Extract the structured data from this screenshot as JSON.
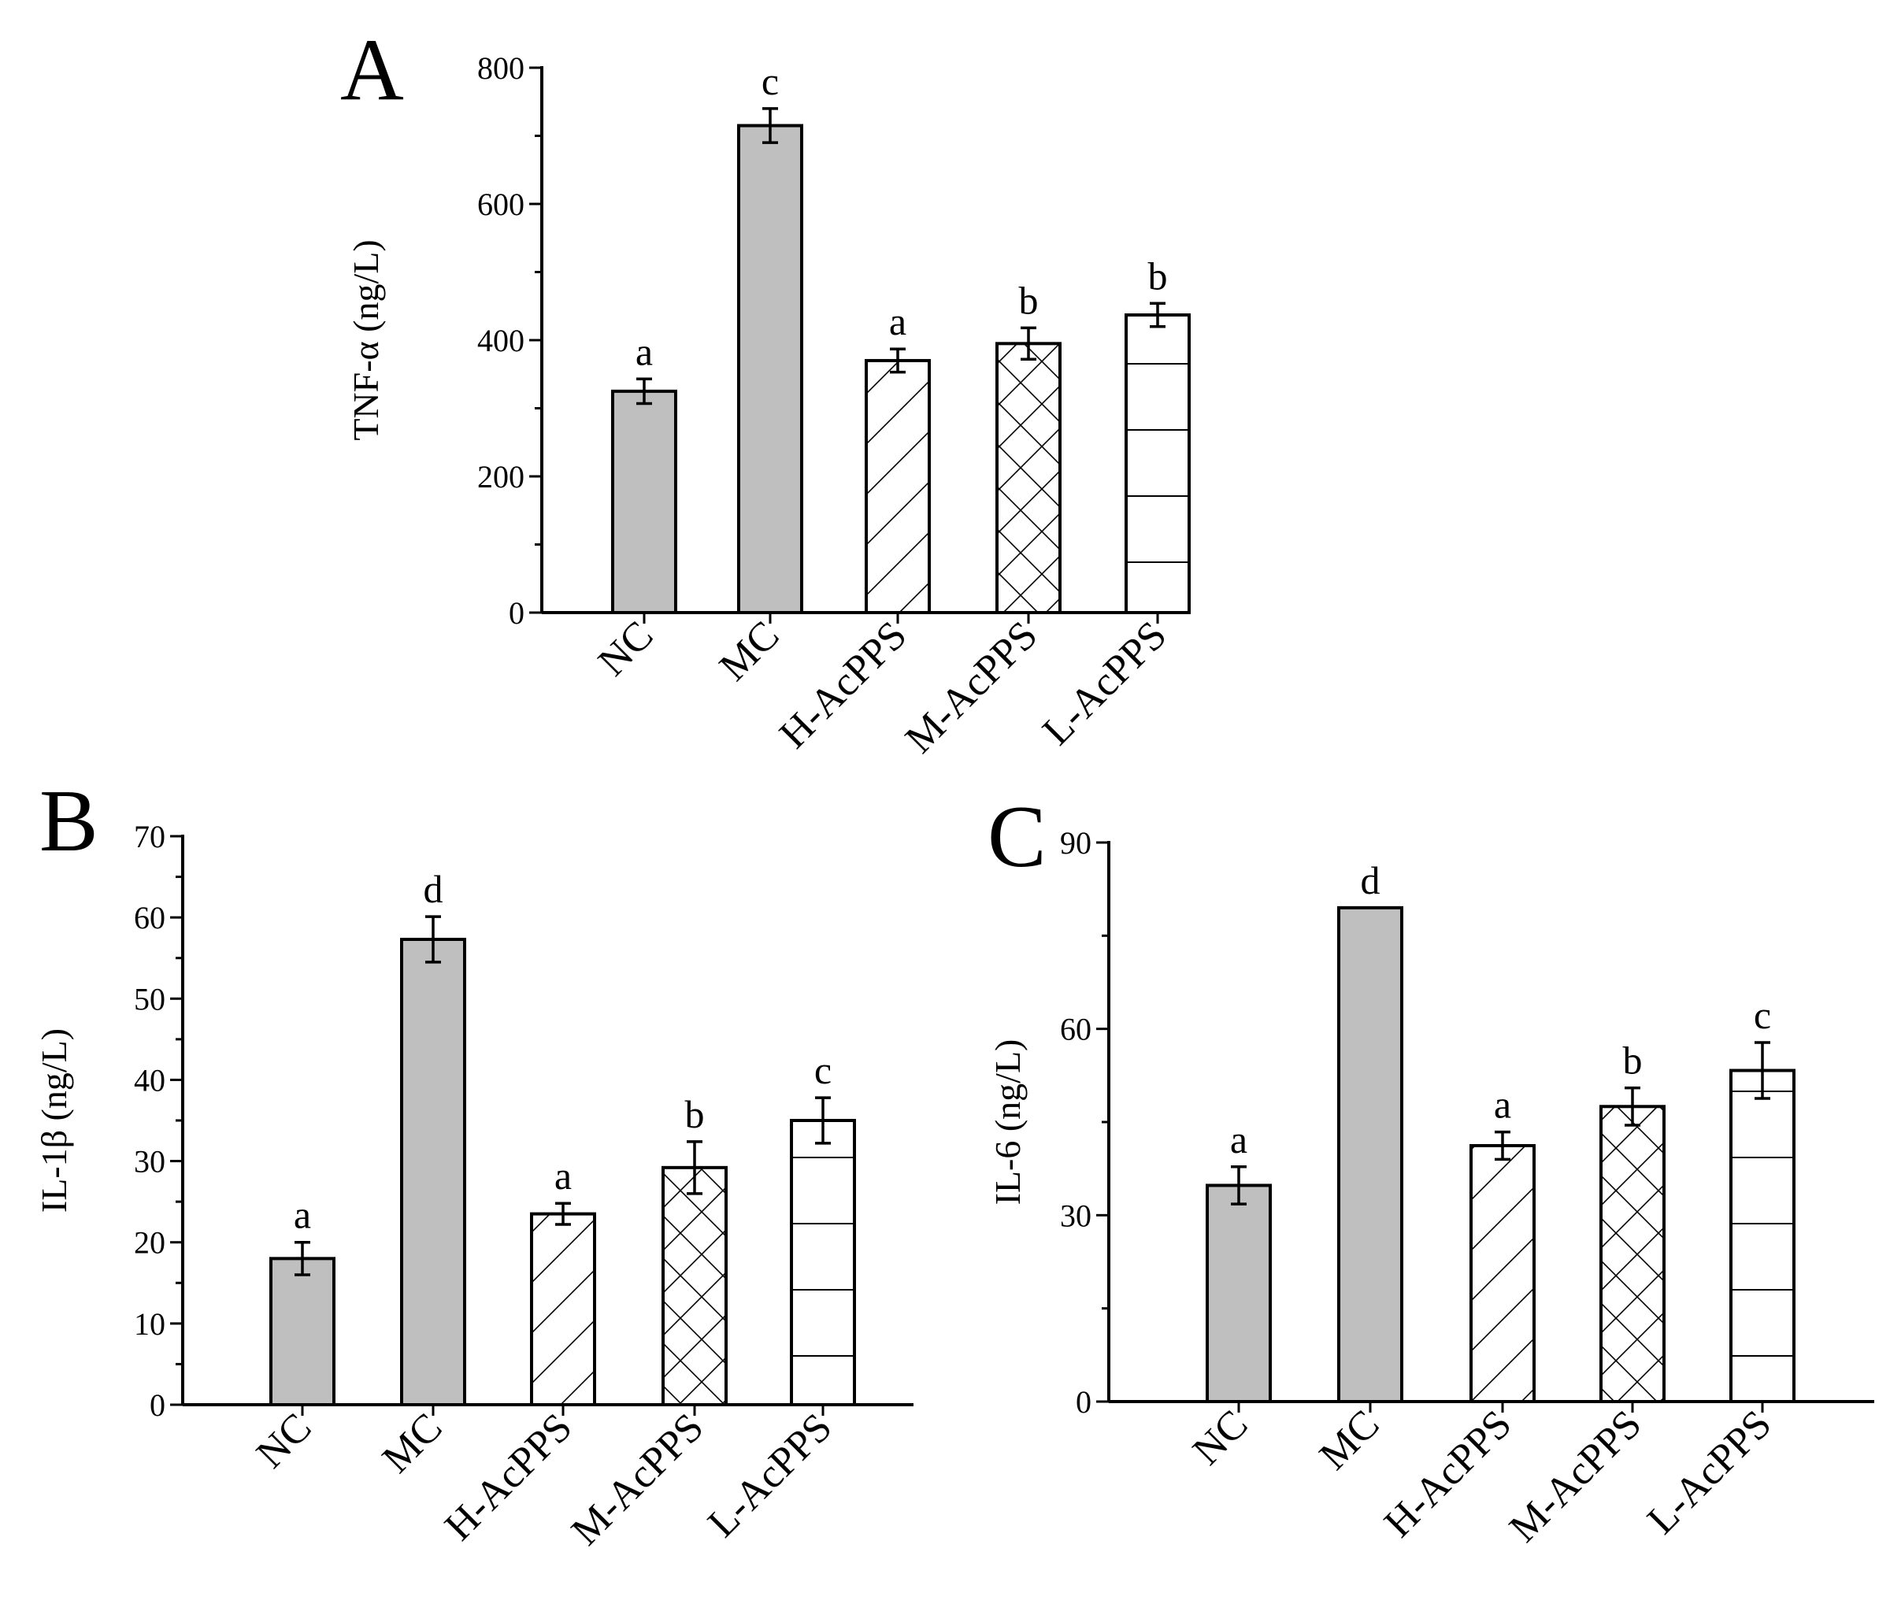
{
  "chart_data": [
    {
      "panel": "A",
      "type": "bar",
      "ylabel": "TNF-α (ng/L)",
      "ylim": [
        0,
        800
      ],
      "yticks": [
        0,
        200,
        400,
        600,
        800
      ],
      "categories": [
        "NC",
        "MC",
        "H-AcPPS",
        "M-AcPPS",
        "L-AcPPS"
      ],
      "values": [
        325,
        715,
        370,
        395,
        437
      ],
      "errors": [
        18,
        25,
        17,
        23,
        17
      ],
      "significance": [
        "a",
        "c",
        "a",
        "b",
        "b"
      ],
      "patterns": [
        "solid-gray",
        "solid-gray",
        "diagonal",
        "crosshatch",
        "horizontal"
      ]
    },
    {
      "panel": "B",
      "type": "bar",
      "ylabel": "IL-1β (ng/L)",
      "ylim": [
        0,
        70
      ],
      "yticks": [
        0,
        10,
        20,
        30,
        40,
        50,
        60,
        70
      ],
      "categories": [
        "NC",
        "MC",
        "H-AcPPS",
        "M-AcPPS",
        "L-AcPPS"
      ],
      "values": [
        18,
        57.3,
        23.5,
        29.2,
        35
      ],
      "errors": [
        2,
        2.8,
        1.3,
        3.2,
        2.8
      ],
      "significance": [
        "a",
        "d",
        "a",
        "b",
        "c"
      ],
      "patterns": [
        "solid-gray",
        "solid-gray",
        "diagonal",
        "crosshatch",
        "horizontal"
      ]
    },
    {
      "panel": "C",
      "type": "bar",
      "ylabel": "IL-6 (ng/L)",
      "ylim": [
        0,
        90
      ],
      "yticks": [
        0,
        30,
        60,
        90
      ],
      "categories": [
        "NC",
        "MC",
        "H-AcPPS",
        "M-AcPPS",
        "L-AcPPS"
      ],
      "values": [
        34.8,
        79.5,
        41.2,
        47.5,
        53.3
      ],
      "errors": [
        3,
        0,
        2.2,
        3,
        4.5
      ],
      "significance": [
        "a",
        "d",
        "a",
        "b",
        "c"
      ],
      "patterns": [
        "solid-gray",
        "solid-gray",
        "diagonal",
        "crosshatch",
        "horizontal"
      ]
    }
  ],
  "colors": {
    "solid_bar": "#bfbfbf",
    "pattern_bar": "#ffffff",
    "ink": "#000000"
  }
}
